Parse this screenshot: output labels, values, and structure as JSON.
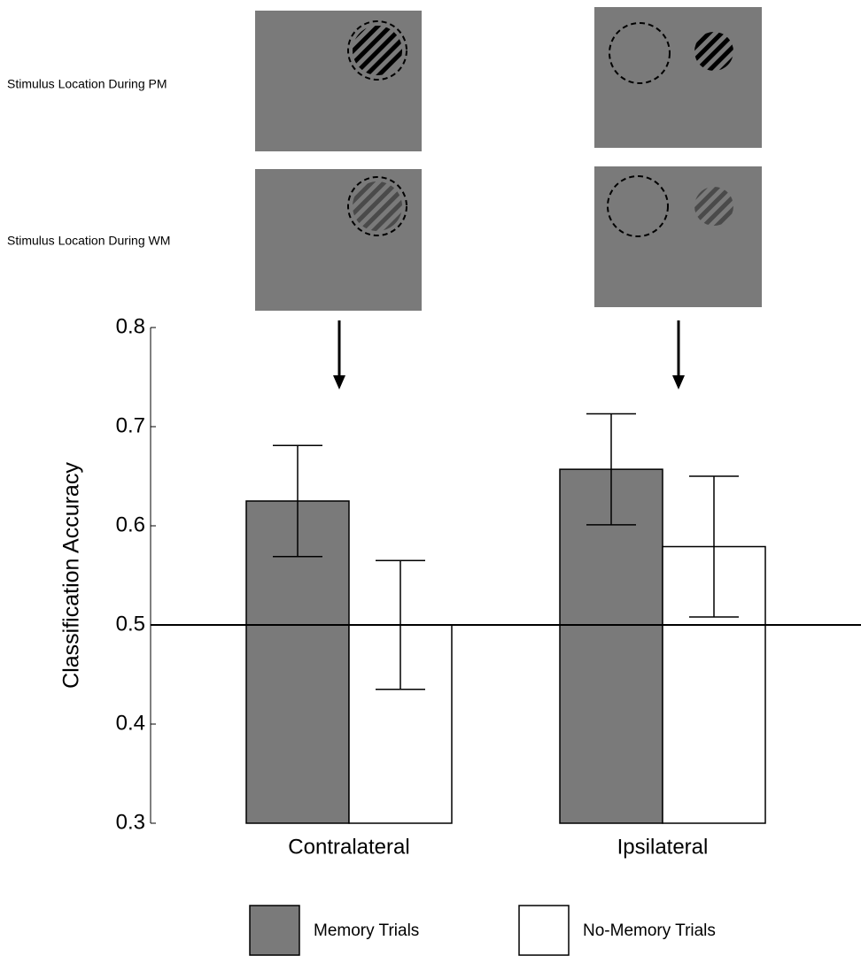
{
  "stimulus_panels": {
    "rows": [
      "Stimulus Location During PM",
      "Stimulus Location During WM"
    ]
  },
  "chart_data": {
    "type": "bar",
    "y_label": "Classification Accuracy",
    "categories": [
      "Contralateral",
      "Ipsilateral"
    ],
    "series": [
      {
        "name": "Memory Trials",
        "color": "#7a7a7a",
        "values": [
          0.625,
          0.657
        ],
        "errors": [
          0.056,
          0.056
        ]
      },
      {
        "name": "No-Memory Trials",
        "color": "#ffffff",
        "values": [
          0.5,
          0.579
        ],
        "errors": [
          0.065,
          0.071
        ]
      }
    ],
    "reference_line": 0.5,
    "ylim": [
      0.3,
      0.8
    ],
    "yticks": [
      0.3,
      0.4,
      0.5,
      0.6,
      0.7,
      0.8
    ],
    "legend": "bottom"
  }
}
